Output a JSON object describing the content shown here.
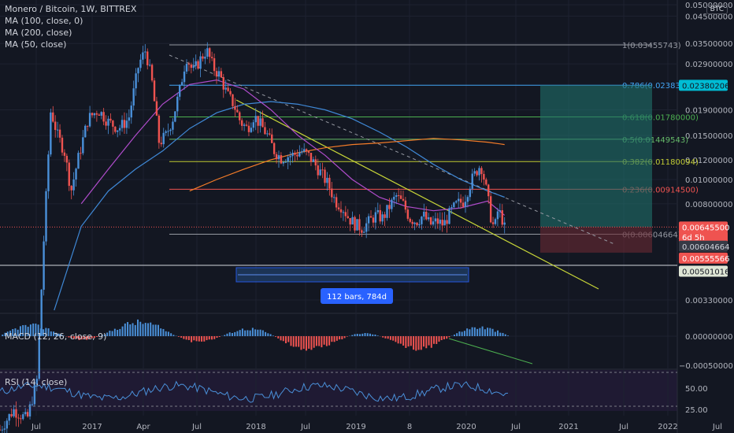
{
  "header": {
    "symbol_title": "Monero / Bitcoin, 1W, BITTREX",
    "indicators": [
      "MA (100, close, 0)",
      "MA (200, close)",
      "MA (50, close)"
    ],
    "currency_badge": "BTC"
  },
  "measure_label": "112 bars, 784d",
  "macd_label": "MACD (12, 26, close, 9)",
  "rsi_label": "RSI (14, close)",
  "colors": {
    "bg": "#131722",
    "bull": "#26a69a",
    "bull_bar": "#4a90d9",
    "bear": "#ef5350",
    "ma100": "#3f88d6",
    "ma200": "#f57c28",
    "ma50": "#b04ccc",
    "trend": "#c8d638",
    "grid": "#1e2230",
    "axis_text": "#b2b5be"
  },
  "chart_data": {
    "type": "candlestick",
    "y_scale": "log",
    "x_ticks": [
      "Jul",
      "2017",
      "Apr",
      "Jul",
      "2018",
      "Jul",
      "2019",
      "8",
      "2020",
      "Jul",
      "2021",
      "Jul",
      "2022",
      "Jul"
    ],
    "price_ticks": [
      "0.05000000",
      "0.04500000",
      "0.03500000",
      "0.02900000",
      "0.01900000",
      "0.01500000",
      "0.01200000",
      "0.01000000",
      "0.00800000",
      "0.00330000"
    ],
    "macd_ticks": [
      "0.00000000",
      "−0.00050000"
    ],
    "rsi_ticks": [
      "50.00",
      "25.00"
    ],
    "fib_levels": [
      {
        "label": "1(0.03455743)",
        "price": 0.03455743,
        "color": "#9598a1"
      },
      {
        "label": "0.786(0.02383586)",
        "price": 0.02383586,
        "color": "#42a5f5"
      },
      {
        "label": "0.618(0.01780000)",
        "price": 0.0178,
        "color": "#4caf50"
      },
      {
        "label": "0.5(0.01449543)",
        "price": 0.01449543,
        "color": "#66bb6a"
      },
      {
        "label": "0.382(0.01180094)",
        "price": 0.01180094,
        "color": "#c0ca33"
      },
      {
        "label": "0.236(0.00914500)",
        "price": 0.009145,
        "color": "#ef5350"
      },
      {
        "label": "0(0.00604664)",
        "price": 0.00604664,
        "color": "#9598a1"
      }
    ],
    "price_labels": [
      {
        "text": "0.02380206",
        "price": 0.02380206,
        "bg": "#00bcd4",
        "fg": "#131722"
      },
      {
        "text": "0.00645500",
        "price": 0.006455,
        "bg": "#ef5350",
        "fg": "#ffffff"
      },
      {
        "text": "6d 5h",
        "price": 0.0059,
        "bg": "#ef5350",
        "fg": "#ffffff"
      },
      {
        "text": "0.00604664",
        "price": 0.00541,
        "bg": "#363a45",
        "fg": "#d1d4dc"
      },
      {
        "text": "0.00555566",
        "price": 0.00485,
        "bg": "#ef5350",
        "fg": "#ffffff"
      },
      {
        "text": "0.00501016",
        "price": 0.0043,
        "bg": "#dfe6d6",
        "fg": "#131722"
      }
    ],
    "price_path": [
      [
        0.0,
        0.001
      ],
      [
        0.02,
        0.0012
      ],
      [
        0.04,
        0.0011
      ],
      [
        0.055,
        0.0016
      ],
      [
        0.065,
        0.006
      ],
      [
        0.075,
        0.019
      ],
      [
        0.085,
        0.015
      ],
      [
        0.095,
        0.013
      ],
      [
        0.105,
        0.009
      ],
      [
        0.115,
        0.012
      ],
      [
        0.13,
        0.0175
      ],
      [
        0.145,
        0.019
      ],
      [
        0.16,
        0.017
      ],
      [
        0.175,
        0.016
      ],
      [
        0.19,
        0.0175
      ],
      [
        0.205,
        0.029
      ],
      [
        0.215,
        0.033
      ],
      [
        0.225,
        0.024
      ],
      [
        0.235,
        0.014
      ],
      [
        0.245,
        0.015
      ],
      [
        0.255,
        0.0175
      ],
      [
        0.265,
        0.0225
      ],
      [
        0.275,
        0.031
      ],
      [
        0.285,
        0.027
      ],
      [
        0.295,
        0.03
      ],
      [
        0.305,
        0.033
      ],
      [
        0.315,
        0.028
      ],
      [
        0.325,
        0.026
      ],
      [
        0.335,
        0.022
      ],
      [
        0.345,
        0.02
      ],
      [
        0.355,
        0.017
      ],
      [
        0.365,
        0.016
      ],
      [
        0.375,
        0.018
      ],
      [
        0.385,
        0.0165
      ],
      [
        0.395,
        0.015
      ],
      [
        0.405,
        0.013
      ],
      [
        0.415,
        0.0122
      ],
      [
        0.425,
        0.0124
      ],
      [
        0.435,
        0.0126
      ],
      [
        0.445,
        0.013
      ],
      [
        0.455,
        0.0125
      ],
      [
        0.465,
        0.0115
      ],
      [
        0.475,
        0.0105
      ],
      [
        0.485,
        0.0095
      ],
      [
        0.495,
        0.0082
      ],
      [
        0.505,
        0.0078
      ],
      [
        0.515,
        0.007
      ],
      [
        0.525,
        0.0066
      ],
      [
        0.535,
        0.0064
      ],
      [
        0.545,
        0.0068
      ],
      [
        0.555,
        0.0072
      ],
      [
        0.565,
        0.007
      ],
      [
        0.575,
        0.0078
      ],
      [
        0.585,
        0.0086
      ],
      [
        0.595,
        0.008
      ],
      [
        0.605,
        0.007
      ],
      [
        0.615,
        0.0068
      ],
      [
        0.625,
        0.0072
      ],
      [
        0.635,
        0.0066
      ],
      [
        0.645,
        0.0068
      ],
      [
        0.655,
        0.0066
      ],
      [
        0.665,
        0.0074
      ],
      [
        0.675,
        0.008
      ],
      [
        0.685,
        0.0082
      ],
      [
        0.695,
        0.0098
      ],
      [
        0.705,
        0.011
      ],
      [
        0.71,
        0.0115
      ],
      [
        0.715,
        0.01
      ],
      [
        0.72,
        0.0085
      ],
      [
        0.725,
        0.007
      ],
      [
        0.73,
        0.0063
      ],
      [
        0.735,
        0.0075
      ],
      [
        0.74,
        0.0072
      ],
      [
        0.745,
        0.0064
      ]
    ],
    "ma50_path": [
      [
        0.12,
        0.008
      ],
      [
        0.16,
        0.011
      ],
      [
        0.2,
        0.015
      ],
      [
        0.24,
        0.02
      ],
      [
        0.28,
        0.024
      ],
      [
        0.32,
        0.025
      ],
      [
        0.36,
        0.023
      ],
      [
        0.4,
        0.019
      ],
      [
        0.44,
        0.015
      ],
      [
        0.48,
        0.0125
      ],
      [
        0.52,
        0.01
      ],
      [
        0.56,
        0.0085
      ],
      [
        0.6,
        0.0078
      ],
      [
        0.64,
        0.0075
      ],
      [
        0.68,
        0.0077
      ],
      [
        0.72,
        0.0082
      ],
      [
        0.745,
        0.0072
      ]
    ],
    "ma100_path": [
      [
        0.08,
        0.003
      ],
      [
        0.12,
        0.0065
      ],
      [
        0.16,
        0.009
      ],
      [
        0.2,
        0.011
      ],
      [
        0.24,
        0.013
      ],
      [
        0.28,
        0.016
      ],
      [
        0.32,
        0.0185
      ],
      [
        0.36,
        0.02
      ],
      [
        0.4,
        0.0205
      ],
      [
        0.44,
        0.02
      ],
      [
        0.48,
        0.019
      ],
      [
        0.52,
        0.0175
      ],
      [
        0.56,
        0.0155
      ],
      [
        0.6,
        0.0135
      ],
      [
        0.64,
        0.0115
      ],
      [
        0.68,
        0.01
      ],
      [
        0.72,
        0.009
      ],
      [
        0.745,
        0.0085
      ]
    ],
    "ma200_path": [
      [
        0.28,
        0.009
      ],
      [
        0.32,
        0.01
      ],
      [
        0.36,
        0.011
      ],
      [
        0.4,
        0.012
      ],
      [
        0.44,
        0.0128
      ],
      [
        0.48,
        0.0134
      ],
      [
        0.52,
        0.0138
      ],
      [
        0.56,
        0.014
      ],
      [
        0.6,
        0.0143
      ],
      [
        0.64,
        0.0146
      ],
      [
        0.68,
        0.0144
      ],
      [
        0.72,
        0.0141
      ],
      [
        0.745,
        0.0138
      ]
    ]
  }
}
